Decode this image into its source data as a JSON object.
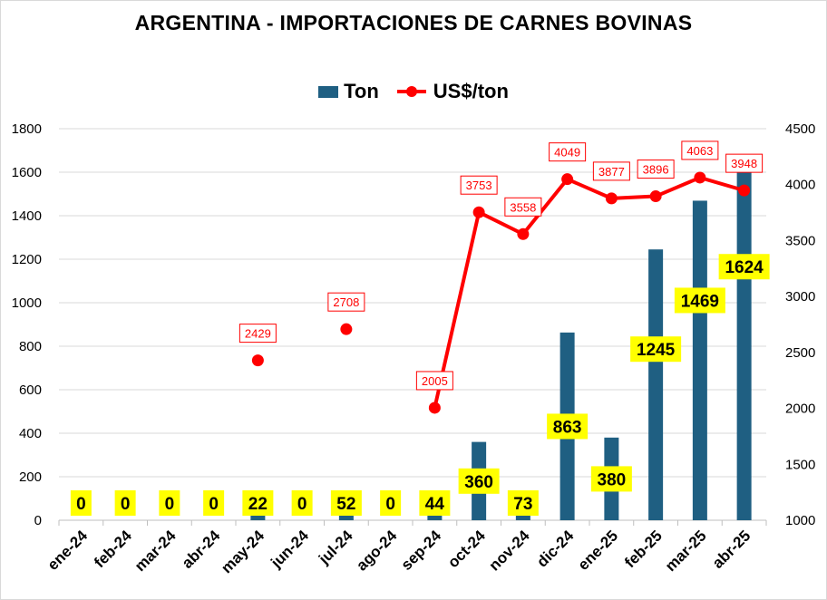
{
  "chart_data": {
    "type": "bar+line",
    "title": "ARGENTINA - IMPORTACIONES DE CARNES BOVINAS",
    "categories": [
      "ene-24",
      "feb-24",
      "mar-24",
      "abr-24",
      "may-24",
      "jun-24",
      "jul-24",
      "ago-24",
      "sep-24",
      "oct-24",
      "nov-24",
      "dic-24",
      "ene-25",
      "feb-25",
      "mar-25",
      "abr-25"
    ],
    "series": [
      {
        "name": "Ton",
        "type": "bar",
        "axis": "left",
        "color": "#1f5f82",
        "values": [
          0,
          0,
          0,
          0,
          22,
          0,
          52,
          0,
          44,
          360,
          73,
          863,
          380,
          1245,
          1469,
          1624
        ],
        "labels": [
          "0",
          "0",
          "0",
          "0",
          "22",
          "0",
          "52",
          "0",
          "44",
          "360",
          "73",
          "863",
          "380",
          "1245",
          "1469",
          "1624"
        ]
      },
      {
        "name": "US$/ton",
        "type": "line",
        "axis": "right",
        "color": "#ff0000",
        "values": [
          null,
          null,
          null,
          null,
          2429,
          null,
          2708,
          null,
          2005,
          3753,
          3558,
          4049,
          3877,
          3896,
          4063,
          3948
        ],
        "labels": [
          "",
          "",
          "",
          "",
          "2429",
          "",
          "2708",
          "",
          "2005",
          "3753",
          "3558",
          "4049",
          "3877",
          "3896",
          "4063",
          "3948"
        ]
      }
    ],
    "y_left": {
      "min": 0,
      "max": 1800,
      "ticks": [
        "0",
        "200",
        "400",
        "600",
        "800",
        "1000",
        "1200",
        "1400",
        "1600",
        "1800"
      ]
    },
    "y_right": {
      "min": 1000,
      "max": 4500,
      "ticks": [
        "1000",
        "1500",
        "2000",
        "2500",
        "3000",
        "3500",
        "4000",
        "4500"
      ]
    },
    "grid": true,
    "legend_position": "top-center",
    "label_highlight_color": "#ffff00"
  }
}
